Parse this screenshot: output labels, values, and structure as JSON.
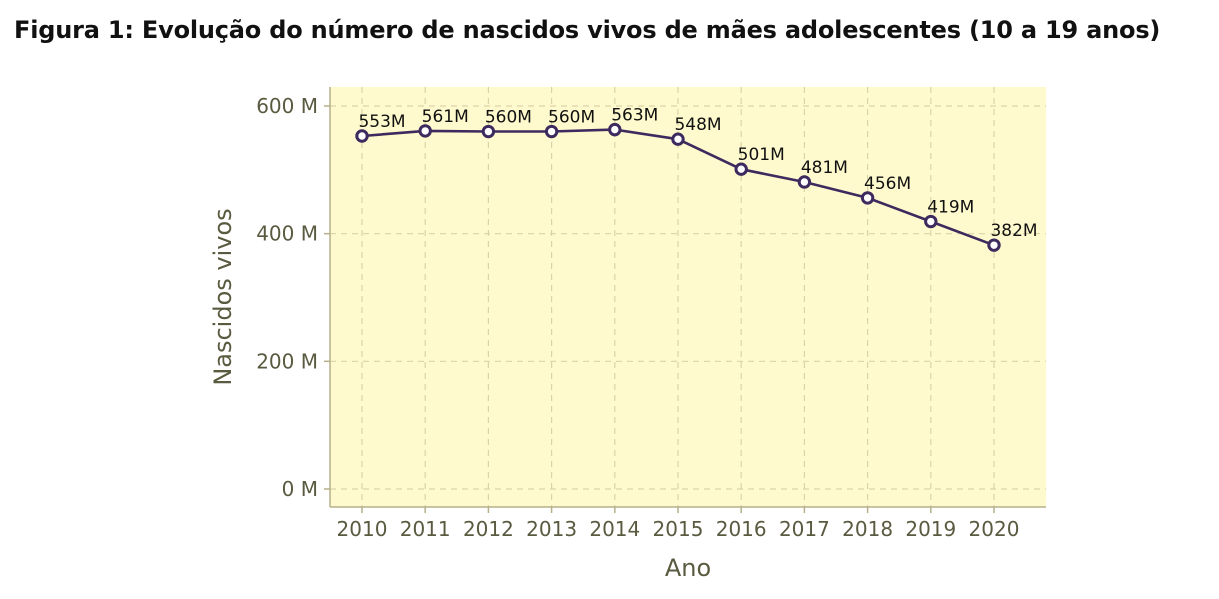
{
  "figure": {
    "title": "Figura 1: Evolução do número de nascidos vivos de mães adolescentes (10 a 19 anos)"
  },
  "chart_data": {
    "type": "line",
    "title": "",
    "xlabel": "Ano",
    "ylabel": "Nascidos vivos",
    "x": [
      "2010",
      "2011",
      "2012",
      "2013",
      "2014",
      "2015",
      "2016",
      "2017",
      "2018",
      "2019",
      "2020"
    ],
    "values": [
      553,
      561,
      560,
      560,
      563,
      548,
      501,
      481,
      456,
      419,
      382
    ],
    "data_labels": [
      "553M",
      "561M",
      "560M",
      "560M",
      "563M",
      "548M",
      "501M",
      "481M",
      "456M",
      "419M",
      "382M"
    ],
    "y_ticks": [
      0,
      200,
      400,
      600
    ],
    "y_tick_labels": [
      "0 M",
      "200 M",
      "400 M",
      "600 M"
    ],
    "ylim": [
      0,
      600
    ],
    "grid": true,
    "legend": "none",
    "colors": {
      "line": "#3d2a5e",
      "panel": "#fffacd",
      "grid": "#d9d4a8",
      "axis": "#b5b08a",
      "marker_fill": "#ffffff"
    }
  }
}
